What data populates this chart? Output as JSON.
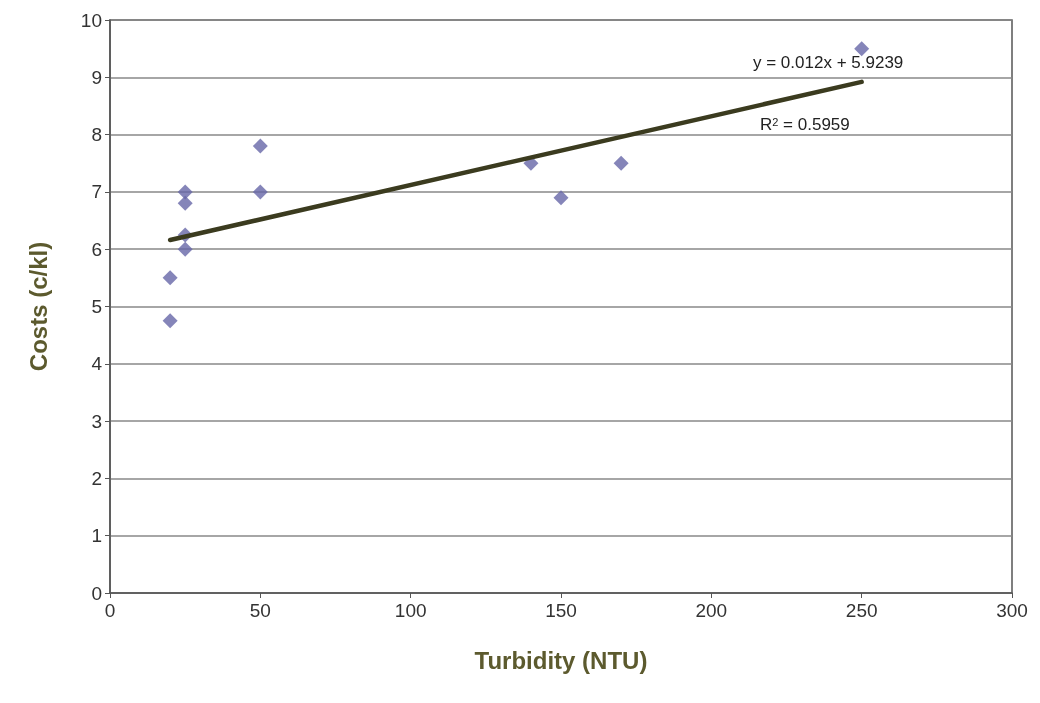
{
  "chart_data": {
    "type": "scatter",
    "xlabel": "Turbidity (NTU)",
    "ylabel": "Costs (c/kl)",
    "series": [
      {
        "color": "#6666a8",
        "marker": "diamond",
        "x": [
          20,
          20,
          25,
          25,
          25,
          25,
          50,
          50,
          140,
          150,
          170,
          250
        ],
        "values": [
          5.5,
          4.75,
          7,
          6.8,
          6.25,
          6,
          7.8,
          7,
          7.5,
          6.9,
          7.5,
          9.5
        ]
      },
      {
        "type": "line",
        "color": "#3b3b1f",
        "marker": "none",
        "x": [
          20,
          250
        ],
        "values": [
          6.16,
          8.92
        ]
      }
    ],
    "annotations": [
      "y = 0.012x + 5.9239",
      "R$^{2}$ = 0.5959"
    ],
    "xlim": [
      0,
      300
    ],
    "xticks": [
      0,
      50,
      100,
      150,
      200,
      250,
      300
    ],
    "ylim": [
      0,
      10
    ],
    "yticks": [
      0,
      1,
      2,
      3,
      4,
      5,
      6,
      7,
      8,
      9,
      10
    ],
    "grid": "y"
  }
}
